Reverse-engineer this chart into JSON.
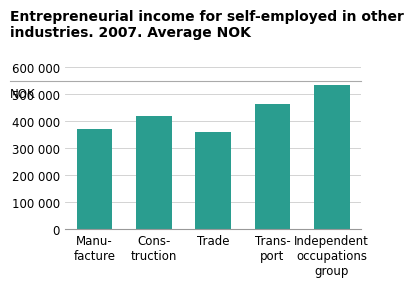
{
  "title": "Entrepreneurial income for self-employed in other\nindustries. 2007. Average NOK",
  "ylabel": "NOK",
  "categories": [
    "Manu-\nfacture",
    "Cons-\ntruction",
    "Trade",
    "Trans-\nport",
    "Independent\noccupations\ngroup"
  ],
  "values": [
    370000,
    420000,
    360000,
    465000,
    535000
  ],
  "bar_color": "#2a9d8f",
  "ylim": [
    0,
    650000
  ],
  "yticks": [
    0,
    100000,
    200000,
    300000,
    400000,
    500000,
    600000
  ],
  "ytick_labels": [
    "0",
    "100 000",
    "200 000",
    "300 000",
    "400 000",
    "500 000",
    "600 000"
  ],
  "background_color": "#ffffff",
  "title_fontsize": 10,
  "tick_fontsize": 8.5,
  "nok_fontsize": 8.5
}
